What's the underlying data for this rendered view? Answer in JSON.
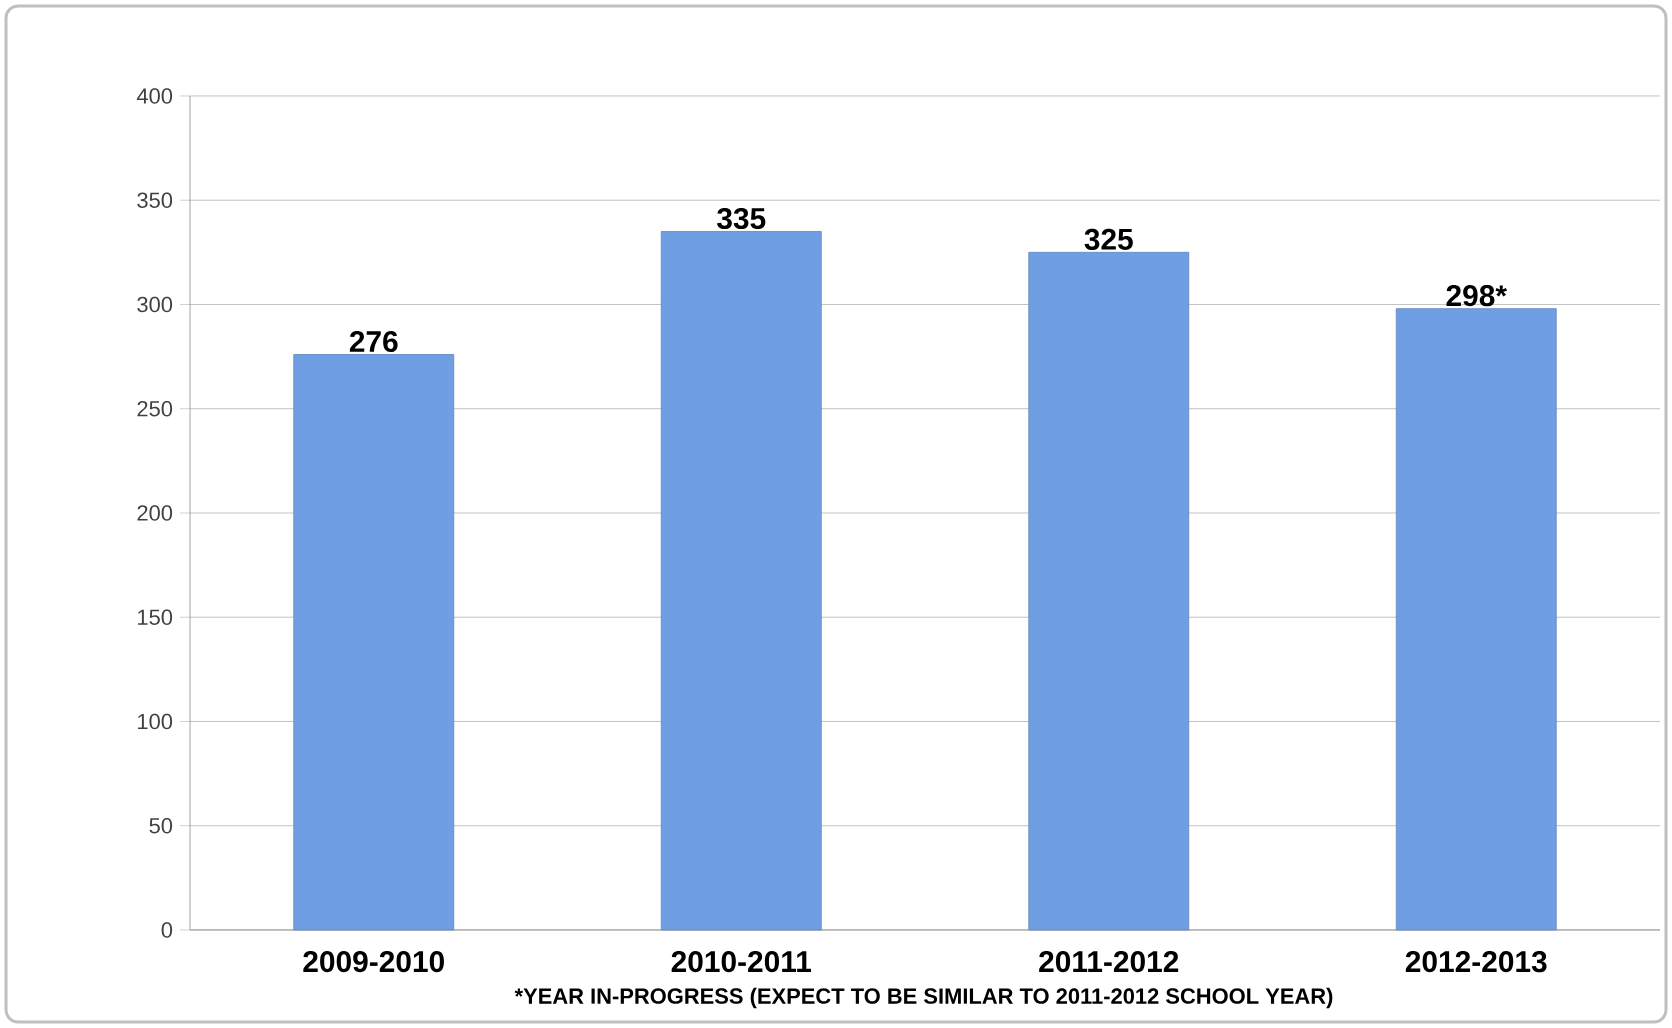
{
  "chart_data": {
    "type": "bar",
    "categories": [
      "2009-2010",
      "2010-2011",
      "2011-2012",
      "2012-2013"
    ],
    "values": [
      276,
      335,
      325,
      298
    ],
    "value_labels": [
      "276",
      "335",
      "325",
      "298*"
    ],
    "color": "#6f9fe2",
    "ylim": [
      0,
      400
    ],
    "yticks": [
      0,
      50,
      100,
      150,
      200,
      250,
      300,
      350,
      400
    ],
    "grid": "y",
    "annotations": [
      "*YEAR IN-PROGRESS (EXPECT TO BE SIMILAR TO 2011-2012 SCHOOL YEAR)"
    ]
  }
}
